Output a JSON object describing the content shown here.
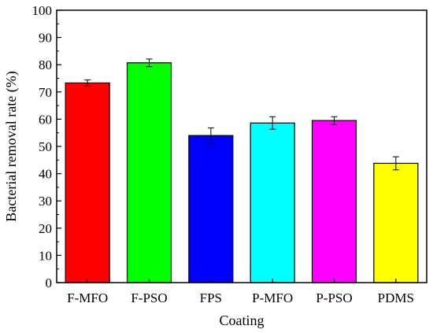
{
  "chart_data": {
    "type": "bar",
    "categories": [
      "F-MFO",
      "F-PSO",
      "FPS",
      "P-MFO",
      "P-PSO",
      "PDMS"
    ],
    "values": [
      73.3,
      80.7,
      54.0,
      58.6,
      59.5,
      43.8
    ],
    "errors": [
      1.1,
      1.4,
      2.8,
      2.3,
      1.4,
      2.4
    ],
    "colors": [
      "#ff0000",
      "#00ff00",
      "#0000ff",
      "#00ffff",
      "#ff00ff",
      "#ffff00"
    ],
    "xlabel": "Coating",
    "ylabel": "Bacterial removal rate (%)",
    "ylim": [
      0,
      100
    ],
    "yticks": [
      0,
      10,
      20,
      30,
      40,
      50,
      60,
      70,
      80,
      90,
      100
    ],
    "grid": false,
    "legend": "none"
  }
}
